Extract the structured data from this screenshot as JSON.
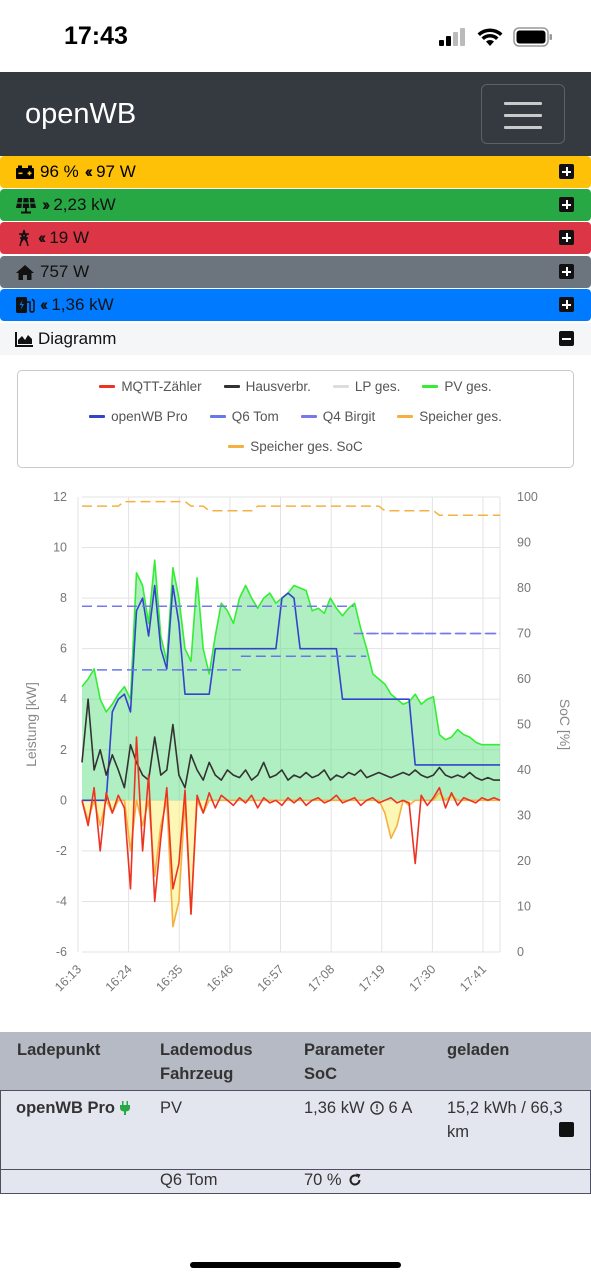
{
  "status_bar": {
    "time": "17:43"
  },
  "navbar": {
    "brand": "openWB"
  },
  "battery": {
    "soc": "96 %",
    "power": "97 W"
  },
  "pv": {
    "power": "2,23 kW"
  },
  "evu": {
    "power": "19 W"
  },
  "house": {
    "power": "757 W"
  },
  "chargepoint": {
    "power": "1,36 kW"
  },
  "diagram": {
    "label": "Diagramm"
  },
  "legend": [
    {
      "name": "MQTT-Zähler",
      "color": "#ee3322"
    },
    {
      "name": "Hausverbr.",
      "color": "#333333"
    },
    {
      "name": "LP ges.",
      "color": "#dddddd"
    },
    {
      "name": "PV ges.",
      "color": "#33ee33"
    },
    {
      "name": "openWB Pro",
      "color": "#3344cc"
    },
    {
      "name": "Q6 Tom",
      "color": "#6677ee"
    },
    {
      "name": "Q4 Birgit",
      "color": "#7777ee"
    },
    {
      "name": "Speicher ges.",
      "color": "#f5b040"
    },
    {
      "name": "Speicher ges. SoC",
      "color": "#f5b040"
    }
  ],
  "chart_data": {
    "type": "line",
    "ylabel": "Leistung [kW]",
    "y2label": "SoC [%]",
    "ylim": [
      -6,
      12
    ],
    "y2lim": [
      0,
      100
    ],
    "yticks": [
      "-6",
      "-4",
      "-2",
      "0",
      "2",
      "4",
      "6",
      "8",
      "10",
      "12"
    ],
    "y2ticks": [
      "0",
      "10",
      "20",
      "30",
      "40",
      "50",
      "60",
      "70",
      "80",
      "90",
      "100"
    ],
    "xticks": [
      "16:13",
      "16:24",
      "16:35",
      "16:46",
      "16:57",
      "17:08",
      "17:19",
      "17:30",
      "17:41"
    ],
    "series": [
      {
        "name": "PV ges.",
        "values": [
          4.5,
          4.8,
          5.2,
          4.0,
          3.5,
          3.8,
          4.2,
          4.5,
          4.0,
          9.0,
          8.5,
          7.0,
          9.5,
          6.5,
          5.5,
          9.2,
          8.0,
          6.0,
          5.5,
          8.8,
          6.0,
          5.0,
          6.5,
          7.8,
          7.5,
          7.0,
          8.0,
          8.5,
          8.0,
          7.6,
          8.0,
          8.2,
          7.8,
          8.0,
          8.2,
          8.5,
          8.4,
          8.3,
          7.5,
          7.6,
          7.4,
          8.0,
          7.6,
          7.3,
          7.6,
          7.8,
          6.8,
          6.0,
          5.0,
          4.8,
          4.6,
          4.2,
          4.0,
          3.8,
          3.9,
          4.2,
          3.8,
          4.0,
          4.1,
          2.6,
          2.4,
          2.5,
          2.8,
          2.6,
          2.5,
          2.3,
          2.2,
          2.2,
          2.2,
          2.2
        ]
      },
      {
        "name": "openWB Pro",
        "values": [
          0,
          0,
          0,
          0,
          0,
          3.5,
          4.0,
          4.2,
          3.5,
          7.5,
          8.0,
          6.5,
          8.5,
          6.0,
          5.2,
          8.5,
          7.0,
          4.2,
          4.2,
          4.2,
          4.2,
          4.2,
          6.0,
          6.0,
          6.0,
          6.0,
          6.0,
          6.0,
          6.0,
          6.0,
          6.0,
          6.0,
          6.0,
          8.0,
          8.2,
          8.0,
          6.0,
          6.0,
          6.0,
          6.0,
          6.0,
          6.0,
          6.0,
          4.0,
          4.0,
          4.0,
          4.0,
          4.0,
          4.0,
          4.0,
          4.0,
          4.0,
          4.0,
          4.0,
          4.0,
          1.4,
          1.4,
          1.4,
          1.4,
          1.4,
          1.4,
          1.4,
          1.4,
          1.4,
          1.4,
          1.4,
          1.4,
          1.4,
          1.4,
          1.4
        ]
      },
      {
        "name": "Hausverbr.",
        "values": [
          1.5,
          4.0,
          1.2,
          2.0,
          1.0,
          1.8,
          1.2,
          0.5,
          2.2,
          1.5,
          1.0,
          0.8,
          2.5,
          1.0,
          1.2,
          3.0,
          1.0,
          0.5,
          1.8,
          1.2,
          0.8,
          1.5,
          1.0,
          0.8,
          1.2,
          1.0,
          0.9,
          1.2,
          0.8,
          1.0,
          1.5,
          0.9,
          1.0,
          1.2,
          0.8,
          1.0,
          0.9,
          1.1,
          0.9,
          1.0,
          1.2,
          0.8,
          1.0,
          0.9,
          1.1,
          1.0,
          1.2,
          0.9,
          1.0,
          1.1,
          1.0,
          0.9,
          1.0,
          1.1,
          1.0,
          1.2,
          1.0,
          0.9,
          1.0,
          1.3,
          1.0,
          0.9,
          1.0,
          0.9,
          1.1,
          0.9,
          0.8,
          0.9,
          0.8,
          0.8
        ]
      },
      {
        "name": "MQTT-Zähler",
        "values": [
          0,
          -1.0,
          0.5,
          -2.0,
          0.3,
          -0.5,
          0.2,
          -0.3,
          -3.5,
          2.5,
          -2.0,
          1.0,
          -4.0,
          -1.5,
          0.5,
          -3.5,
          -2.5,
          0.4,
          -4.5,
          0.2,
          -0.5,
          0.3,
          -0.3,
          0.2,
          0,
          -0.2,
          0.1,
          -0.1,
          0.2,
          -0.3,
          0.1,
          -0.1,
          0,
          -0.2,
          0.1,
          -0.1,
          0.1,
          -0.2,
          0,
          0.1,
          -0.1,
          0,
          0.2,
          -0.1,
          0,
          0.1,
          -0.2,
          0,
          0.1,
          -0.1,
          0,
          0.1,
          -0.1,
          0,
          -0.1,
          -2.5,
          0.2,
          -0.2,
          0.1,
          0.5,
          -0.3,
          0.3,
          -0.2,
          0.1,
          0,
          -0.1,
          0.1,
          0,
          0.1,
          0
        ]
      },
      {
        "name": "Speicher ges.",
        "values": [
          0,
          -0.8,
          0,
          -1.0,
          0,
          -0.5,
          0,
          0,
          -2.0,
          0,
          -1.0,
          0,
          -3.0,
          -1.0,
          0,
          -5.0,
          -4.0,
          0,
          -4.5,
          0,
          -0.5,
          0,
          0,
          0,
          0,
          0,
          0,
          0,
          0,
          0,
          0,
          0,
          0,
          0,
          0,
          0,
          0,
          0,
          0,
          0,
          0,
          0,
          0,
          0,
          0,
          0,
          0,
          0,
          0,
          0,
          -0.5,
          -1.5,
          -1.0,
          0,
          -0.2,
          0,
          0,
          0,
          0,
          0.3,
          0,
          0.2,
          0,
          0,
          0,
          0,
          0,
          0,
          0,
          0
        ]
      },
      {
        "name": "Speicher ges. SoC",
        "values": [
          98,
          98,
          98,
          98,
          98,
          98,
          98,
          99,
          99,
          99,
          99,
          99,
          99,
          99,
          99,
          99,
          99,
          99,
          98,
          98,
          98,
          97,
          97,
          97,
          97,
          97,
          97,
          97,
          97,
          98,
          98,
          98,
          98,
          98,
          98,
          98,
          98,
          98,
          98,
          98,
          98,
          98,
          98,
          98,
          98,
          98,
          98,
          98,
          98,
          98,
          97,
          97,
          97,
          97,
          97,
          97,
          97,
          97,
          97,
          96,
          96,
          96,
          96,
          96,
          96,
          96,
          96,
          96,
          96,
          96
        ]
      },
      {
        "name": "Q6 Tom",
        "values": [
          null,
          null,
          null,
          null,
          null,
          null,
          null,
          null,
          null,
          null,
          null,
          null,
          null,
          null,
          null,
          null,
          null,
          null,
          null,
          null,
          null,
          null,
          null,
          null,
          null,
          null,
          null,
          null,
          null,
          null,
          null,
          null,
          null,
          null,
          null,
          null,
          null,
          null,
          null,
          null,
          null,
          null,
          null,
          null,
          null,
          null,
          null,
          null,
          null,
          null,
          null,
          null,
          null,
          null,
          null,
          null,
          null,
          null,
          null,
          null,
          null,
          null,
          null,
          null,
          null,
          null,
          null,
          null,
          null,
          null
        ]
      },
      {
        "name": "Q4 Birgit",
        "values": [
          null,
          null,
          null,
          null,
          null,
          null,
          null,
          null,
          null,
          null,
          null,
          null,
          null,
          null,
          null,
          null,
          null,
          null,
          null,
          null,
          null,
          null,
          null,
          null,
          null,
          null,
          null,
          null,
          null,
          null,
          null,
          null,
          null,
          null,
          null,
          null,
          null,
          null,
          null,
          null,
          null,
          null,
          null,
          null,
          null,
          null,
          null,
          null,
          null,
          null,
          null,
          null,
          null,
          null,
          null,
          null,
          null,
          null,
          null,
          null,
          null,
          null,
          null,
          null,
          null,
          null,
          null,
          null,
          null,
          null
        ]
      }
    ],
    "soc_lines": {
      "q6_tom": [
        {
          "from": 0,
          "to": 0.38,
          "soc": 62
        },
        {
          "from": 0.38,
          "to": 0.68,
          "soc": 65
        },
        {
          "from": 0.68,
          "to": 1.0,
          "soc": 70
        }
      ],
      "q4_birgit": [
        {
          "from": 0,
          "to": 0.65,
          "soc": 76
        },
        {
          "from": 0.65,
          "to": 0.82,
          "soc": 70
        },
        {
          "from": 0.82,
          "to": 1.0,
          "soc": 70
        }
      ]
    }
  },
  "table": {
    "headers": [
      [
        "Ladepunkt",
        ""
      ],
      [
        "Lademodus",
        "Fahrzeug"
      ],
      [
        "Parameter",
        "SoC"
      ],
      [
        "geladen",
        ""
      ]
    ],
    "row": {
      "name": "openWB Pro",
      "mode": "PV",
      "param": "1,36 kW",
      "current": "6 A",
      "charged_line1": "15,2 kWh / 66,3",
      "charged_line2": "km",
      "vehicle": "Q6 Tom",
      "soc": "70 %"
    }
  }
}
